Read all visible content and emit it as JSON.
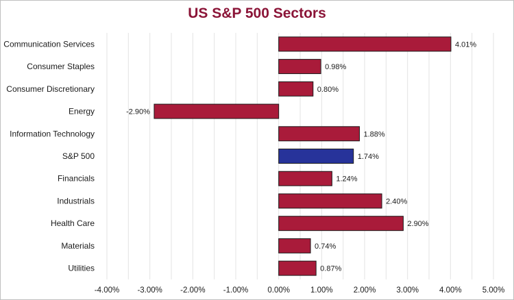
{
  "chart_data": {
    "type": "bar",
    "orientation": "horizontal",
    "title": "US S&P 500 Sectors",
    "categories": [
      "Communication Services",
      "Consumer Staples",
      "Consumer Discretionary",
      "Energy",
      "Information Technology",
      "S&P 500",
      "Financials",
      "Industrials",
      "Health Care",
      "Materials",
      "Utilities"
    ],
    "values": [
      4.01,
      0.98,
      0.8,
      -2.9,
      1.88,
      1.74,
      1.24,
      2.4,
      2.9,
      0.74,
      0.87
    ],
    "value_labels": [
      "4.01%",
      "0.98%",
      "0.80%",
      "-2.90%",
      "1.88%",
      "1.74%",
      "1.24%",
      "2.40%",
      "2.90%",
      "0.74%",
      "0.87%"
    ],
    "xlim": [
      -4,
      5
    ],
    "x_ticks": [
      -4,
      -3,
      -2,
      -1,
      0,
      1,
      2,
      3,
      4,
      5
    ],
    "x_tick_labels": [
      "-4.00%",
      "-3.00%",
      "-2.00%",
      "-1.00%",
      "0.00%",
      "1.00%",
      "2.00%",
      "3.00%",
      "4.00%",
      "5.00%"
    ],
    "xlabel": "",
    "ylabel": "",
    "grid": "vertical",
    "legend": "none",
    "colors": {
      "bar": "#a91b3a",
      "highlight_bar": "#27339a",
      "highlight_category": "S&P 500",
      "bar_outline": "#1a1a1a",
      "title": "#8b1538",
      "grid": "#e3e3e3"
    }
  }
}
